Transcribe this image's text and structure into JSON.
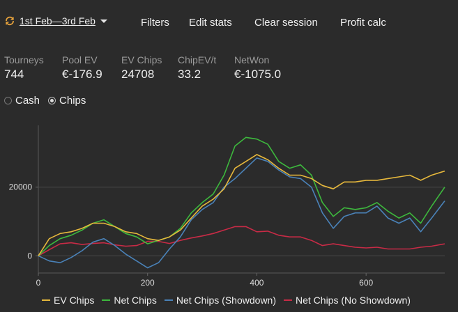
{
  "toolbar": {
    "session_label": "1st Feb—3rd Feb",
    "filters": "Filters",
    "edit_stats": "Edit stats",
    "clear_session": "Clear session",
    "profit_calc": "Profit calc"
  },
  "stats": [
    {
      "label": "Tourneys",
      "value": "744"
    },
    {
      "label": "Pool EV",
      "value": "€-176.9"
    },
    {
      "label": "EV Chips",
      "value": "24708"
    },
    {
      "label": "ChipEV/t",
      "value": "33.2"
    },
    {
      "label": "NetWon",
      "value": "€-1075.0"
    }
  ],
  "mode": {
    "options": [
      "Cash",
      "Chips"
    ],
    "selected": "Chips"
  },
  "colors": {
    "ev": "#e6b83c",
    "net": "#3db83d",
    "showdown": "#4a82b8",
    "noshow": "#c82b46"
  },
  "chart_data": {
    "type": "line",
    "xlim": [
      0,
      744
    ],
    "ylim": [
      -5000,
      38000
    ],
    "xticks": [
      0,
      200,
      400,
      600
    ],
    "yticks": [
      0,
      20000
    ],
    "series": [
      {
        "name": "EV Chips",
        "color": "#e6b83c",
        "x": [
          0,
          20,
          40,
          60,
          80,
          100,
          120,
          140,
          160,
          180,
          200,
          220,
          240,
          260,
          280,
          300,
          320,
          340,
          360,
          380,
          400,
          420,
          440,
          460,
          480,
          500,
          520,
          540,
          560,
          580,
          600,
          620,
          640,
          660,
          680,
          700,
          720,
          744
        ],
        "y": [
          0,
          5000,
          6500,
          7000,
          8000,
          9500,
          9500,
          8500,
          7000,
          6500,
          5000,
          4500,
          5500,
          7500,
          11000,
          14500,
          16500,
          19500,
          25500,
          27500,
          29500,
          28000,
          25500,
          23500,
          23500,
          22500,
          20500,
          19500,
          21500,
          21500,
          22000,
          22000,
          22500,
          23000,
          23500,
          22000,
          23500,
          24700
        ]
      },
      {
        "name": "Net Chips",
        "color": "#3db83d",
        "x": [
          0,
          20,
          40,
          60,
          80,
          100,
          120,
          140,
          160,
          180,
          200,
          220,
          240,
          260,
          280,
          300,
          320,
          340,
          360,
          380,
          400,
          420,
          440,
          460,
          480,
          500,
          520,
          540,
          560,
          580,
          600,
          620,
          640,
          660,
          680,
          700,
          720,
          744
        ],
        "y": [
          0,
          3000,
          5000,
          6000,
          7500,
          9500,
          10500,
          8500,
          6500,
          5500,
          3500,
          4500,
          5500,
          8000,
          12500,
          15500,
          18000,
          23500,
          32000,
          34500,
          34000,
          32500,
          27500,
          25500,
          26500,
          23500,
          15500,
          11500,
          14000,
          13500,
          14000,
          15500,
          13000,
          11000,
          12500,
          9500,
          14500,
          20000
        ]
      },
      {
        "name": "Net Chips (Showdown)",
        "color": "#4a82b8",
        "x": [
          0,
          20,
          40,
          60,
          80,
          100,
          120,
          140,
          160,
          180,
          200,
          220,
          240,
          260,
          280,
          300,
          320,
          340,
          360,
          380,
          400,
          420,
          440,
          460,
          480,
          500,
          520,
          540,
          560,
          580,
          600,
          620,
          640,
          660,
          680,
          700,
          720,
          744
        ],
        "y": [
          0,
          -1500,
          -2000,
          -500,
          1500,
          4000,
          5000,
          3000,
          500,
          -1500,
          -3500,
          -2000,
          2000,
          5500,
          10500,
          13500,
          15500,
          20000,
          22500,
          25500,
          28500,
          27500,
          25000,
          23000,
          22500,
          20000,
          12500,
          8000,
          11500,
          12500,
          12500,
          14500,
          11000,
          9500,
          11000,
          7000,
          11000,
          16000
        ]
      },
      {
        "name": "Net Chips (No Showdown)",
        "color": "#c82b46",
        "x": [
          0,
          20,
          40,
          60,
          80,
          100,
          120,
          140,
          160,
          180,
          200,
          220,
          240,
          260,
          280,
          300,
          320,
          340,
          360,
          380,
          400,
          420,
          440,
          460,
          480,
          500,
          520,
          540,
          560,
          580,
          600,
          620,
          640,
          660,
          680,
          700,
          720,
          744
        ],
        "y": [
          0,
          1800,
          3500,
          3800,
          3300,
          3600,
          3800,
          3200,
          2800,
          3000,
          4200,
          4200,
          3600,
          4500,
          5200,
          5800,
          6500,
          7500,
          8500,
          8500,
          7000,
          7200,
          6000,
          5500,
          5500,
          4500,
          3000,
          3500,
          3000,
          2500,
          2300,
          2500,
          2000,
          2000,
          2000,
          2500,
          2800,
          3500
        ]
      }
    ]
  }
}
